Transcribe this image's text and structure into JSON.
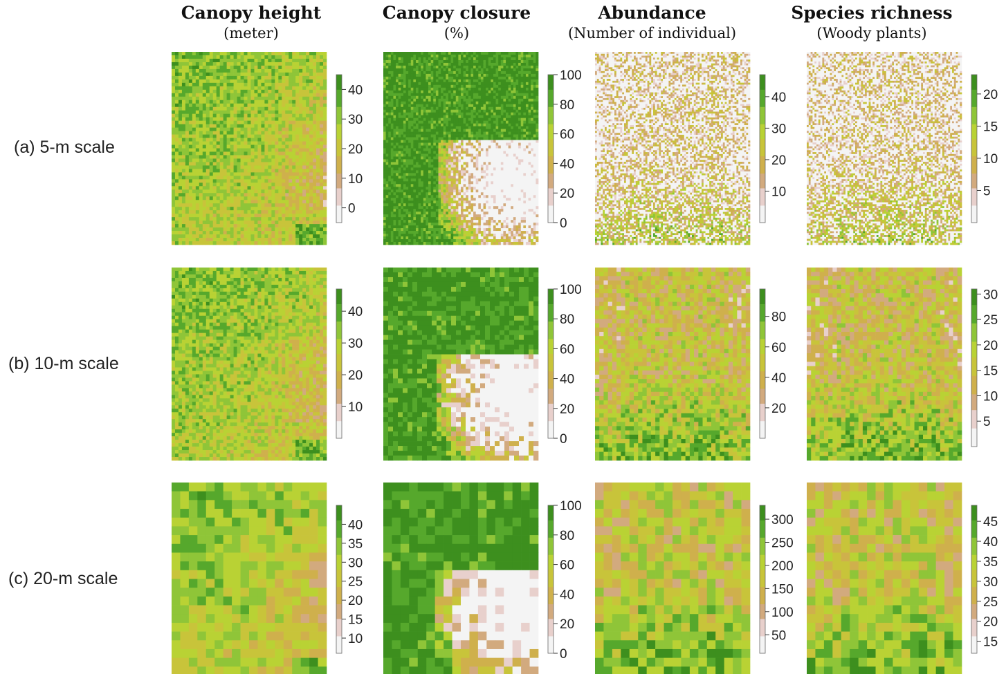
{
  "palette": [
    "#f4f4f4",
    "#e8d0cc",
    "#d2aa7e",
    "#cfb04c",
    "#c8c43a",
    "#b9d234",
    "#8fc538",
    "#56a82c",
    "#3d8f1e"
  ],
  "chart_data": [
    {
      "type": "heatmap",
      "row": 0,
      "col": 0,
      "title": "Canopy height",
      "subtitle": "(meter)",
      "row_label": "(a) 5-m scale",
      "grid": [
        45,
        56
      ],
      "colorbar_range": [
        -5,
        45
      ],
      "colorbar_ticks": [
        "0",
        "10",
        "20",
        "30",
        "40"
      ],
      "colorbar_tick_values": [
        0,
        10,
        20,
        30,
        40
      ]
    },
    {
      "type": "heatmap",
      "row": 0,
      "col": 1,
      "title": "Canopy closure",
      "subtitle": "(%)",
      "row_label": "(a) 5-m scale",
      "grid": [
        62,
        70
      ],
      "colorbar_range": [
        0,
        100
      ],
      "colorbar_ticks": [
        "0",
        "20",
        "40",
        "60",
        "80",
        "100"
      ],
      "colorbar_tick_values": [
        0,
        20,
        40,
        60,
        80,
        100
      ]
    },
    {
      "type": "heatmap",
      "row": 0,
      "col": 2,
      "title": "Abundance",
      "subtitle": "(Number of individual)",
      "row_label": "(a) 5-m scale",
      "grid": [
        80,
        100
      ],
      "colorbar_range": [
        0,
        47
      ],
      "colorbar_ticks": [
        "10",
        "20",
        "30",
        "40"
      ],
      "colorbar_tick_values": [
        10,
        20,
        30,
        40
      ]
    },
    {
      "type": "heatmap",
      "row": 0,
      "col": 3,
      "title": "Species richness",
      "subtitle": "(Woody plants)",
      "row_label": "(a) 5-m scale",
      "grid": [
        80,
        100
      ],
      "colorbar_range": [
        0,
        23
      ],
      "colorbar_ticks": [
        "5",
        "10",
        "15",
        "20"
      ],
      "colorbar_tick_values": [
        5,
        10,
        15,
        20
      ]
    },
    {
      "type": "heatmap",
      "row": 1,
      "col": 0,
      "title": "Canopy height",
      "subtitle": "(meter)",
      "row_label": "(b) 10-m scale",
      "grid": [
        45,
        56
      ],
      "colorbar_range": [
        0,
        47
      ],
      "colorbar_ticks": [
        "10",
        "20",
        "30",
        "40"
      ],
      "colorbar_tick_values": [
        10,
        20,
        30,
        40
      ]
    },
    {
      "type": "heatmap",
      "row": 1,
      "col": 1,
      "title": "Canopy closure",
      "subtitle": "(%)",
      "row_label": "(b) 10-m scale",
      "grid": [
        32,
        40
      ],
      "colorbar_range": [
        0,
        100
      ],
      "colorbar_ticks": [
        "0",
        "20",
        "40",
        "60",
        "80",
        "100"
      ],
      "colorbar_tick_values": [
        0,
        20,
        40,
        60,
        80,
        100
      ]
    },
    {
      "type": "heatmap",
      "row": 1,
      "col": 2,
      "title": "Abundance",
      "subtitle": "(Number of individual)",
      "row_label": "(b) 10-m scale",
      "grid": [
        36,
        45
      ],
      "colorbar_range": [
        0,
        98
      ],
      "colorbar_ticks": [
        "20",
        "40",
        "60",
        "80"
      ],
      "colorbar_tick_values": [
        20,
        40,
        60,
        80
      ]
    },
    {
      "type": "heatmap",
      "row": 1,
      "col": 3,
      "title": "Species richness",
      "subtitle": "(Woody plants)",
      "row_label": "(b) 10-m scale",
      "grid": [
        36,
        45
      ],
      "colorbar_range": [
        0,
        31
      ],
      "colorbar_ticks": [
        "5",
        "10",
        "15",
        "20",
        "25",
        "30"
      ],
      "colorbar_tick_values": [
        5,
        10,
        15,
        20,
        25,
        30
      ]
    },
    {
      "type": "heatmap",
      "row": 2,
      "col": 0,
      "title": "Canopy height",
      "subtitle": "(meter)",
      "row_label": "(c) 20-m scale",
      "grid": [
        18,
        22
      ],
      "colorbar_range": [
        6,
        45
      ],
      "colorbar_ticks": [
        "10",
        "15",
        "20",
        "25",
        "30",
        "35",
        "40"
      ],
      "colorbar_tick_values": [
        10,
        15,
        20,
        25,
        30,
        35,
        40
      ]
    },
    {
      "type": "heatmap",
      "row": 2,
      "col": 1,
      "title": "Canopy closure",
      "subtitle": "(%)",
      "row_label": "(c) 20-m scale",
      "grid": [
        18,
        22
      ],
      "colorbar_range": [
        0,
        100
      ],
      "colorbar_ticks": [
        "0",
        "20",
        "40",
        "60",
        "80",
        "100"
      ],
      "colorbar_tick_values": [
        0,
        20,
        40,
        60,
        80,
        100
      ]
    },
    {
      "type": "heatmap",
      "row": 2,
      "col": 2,
      "title": "Abundance",
      "subtitle": "(Number of individual)",
      "row_label": "(c) 20-m scale",
      "grid": [
        18,
        22
      ],
      "colorbar_range": [
        10,
        330
      ],
      "colorbar_ticks": [
        "50",
        "100",
        "150",
        "200",
        "250",
        "300"
      ],
      "colorbar_tick_values": [
        50,
        100,
        150,
        200,
        250,
        300
      ]
    },
    {
      "type": "heatmap",
      "row": 2,
      "col": 3,
      "title": "Species richness",
      "subtitle": "(Woody plants)",
      "row_label": "(c) 20-m scale",
      "grid": [
        18,
        22
      ],
      "colorbar_range": [
        12,
        49
      ],
      "colorbar_ticks": [
        "15",
        "20",
        "25",
        "30",
        "35",
        "40",
        "45"
      ],
      "colorbar_tick_values": [
        15,
        20,
        25,
        30,
        35,
        40,
        45
      ]
    }
  ],
  "columns": [
    {
      "title": "Canopy height",
      "subtitle": "(meter)"
    },
    {
      "title": "Canopy closure",
      "subtitle": "(%)"
    },
    {
      "title": "Abundance",
      "subtitle": "(Number of individual)"
    },
    {
      "title": "Species richness",
      "subtitle": "(Woody plants)"
    }
  ],
  "rows": [
    {
      "label": "(a) 5-m scale"
    },
    {
      "label": "(b) 10-m scale"
    },
    {
      "label": "(c) 20-m scale"
    }
  ]
}
